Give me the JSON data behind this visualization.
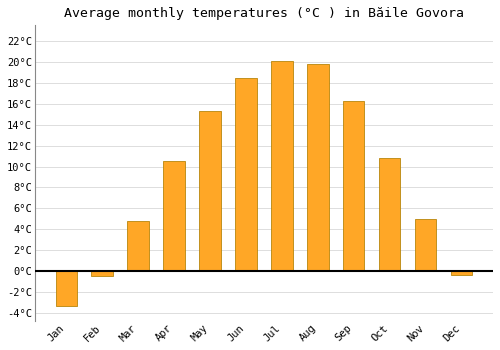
{
  "title": "Average monthly temperatures (°C ) in Băile Govora",
  "months": [
    "Jan",
    "Feb",
    "Mar",
    "Apr",
    "May",
    "Jun",
    "Jul",
    "Aug",
    "Sep",
    "Oct",
    "Nov",
    "Dec"
  ],
  "temperatures": [
    -3.3,
    -0.5,
    4.8,
    10.5,
    15.3,
    18.5,
    20.1,
    19.8,
    16.3,
    10.8,
    5.0,
    -0.4
  ],
  "bar_color": "#FFA726",
  "bar_edge_color": "#B8860B",
  "background_color": "#FFFFFF",
  "grid_color": "#DDDDDD",
  "yticks": [
    -4,
    -2,
    0,
    2,
    4,
    6,
    8,
    10,
    12,
    14,
    16,
    18,
    20,
    22
  ],
  "ylim": [
    -4.8,
    23.5
  ],
  "zero_line_color": "#000000",
  "title_fontsize": 9.5,
  "tick_fontsize": 7.5,
  "font_family": "monospace"
}
